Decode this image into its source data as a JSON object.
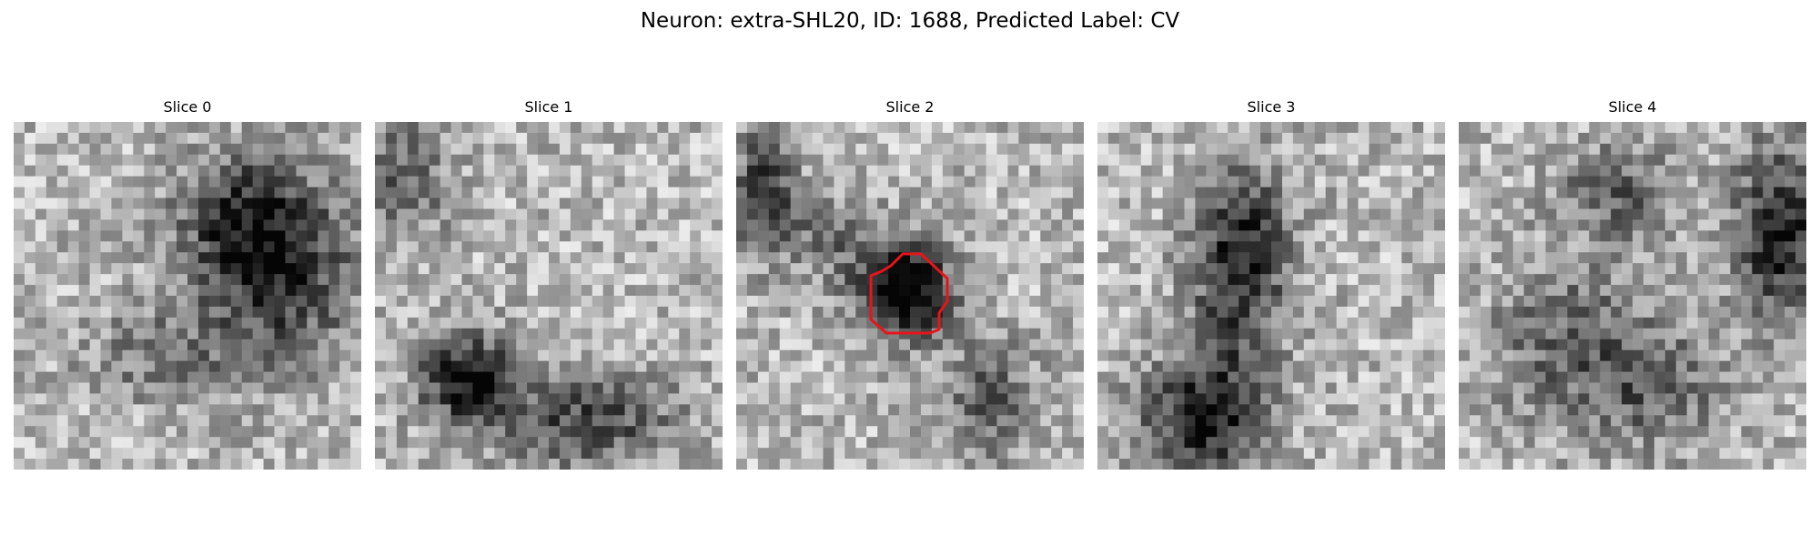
{
  "figure": {
    "title": "Neuron: extra-SHL20, ID: 1688, Predicted Label: CV"
  },
  "panels": [
    {
      "title": "Slice 0",
      "image": "grayscale-noise-patch",
      "dark_region": "upper-right"
    },
    {
      "title": "Slice 1",
      "image": "grayscale-noise-patch",
      "dark_region": "lower-left"
    },
    {
      "title": "Slice 2",
      "image": "grayscale-noise-patch",
      "dark_region": "center",
      "contour": "red-outline"
    },
    {
      "title": "Slice 3",
      "image": "grayscale-noise-patch",
      "dark_region": "center-vertical"
    },
    {
      "title": "Slice 4",
      "image": "grayscale-noise-patch",
      "dark_region": "right"
    }
  ],
  "colors": {
    "contour": "#e8141a",
    "background": "#ffffff"
  }
}
